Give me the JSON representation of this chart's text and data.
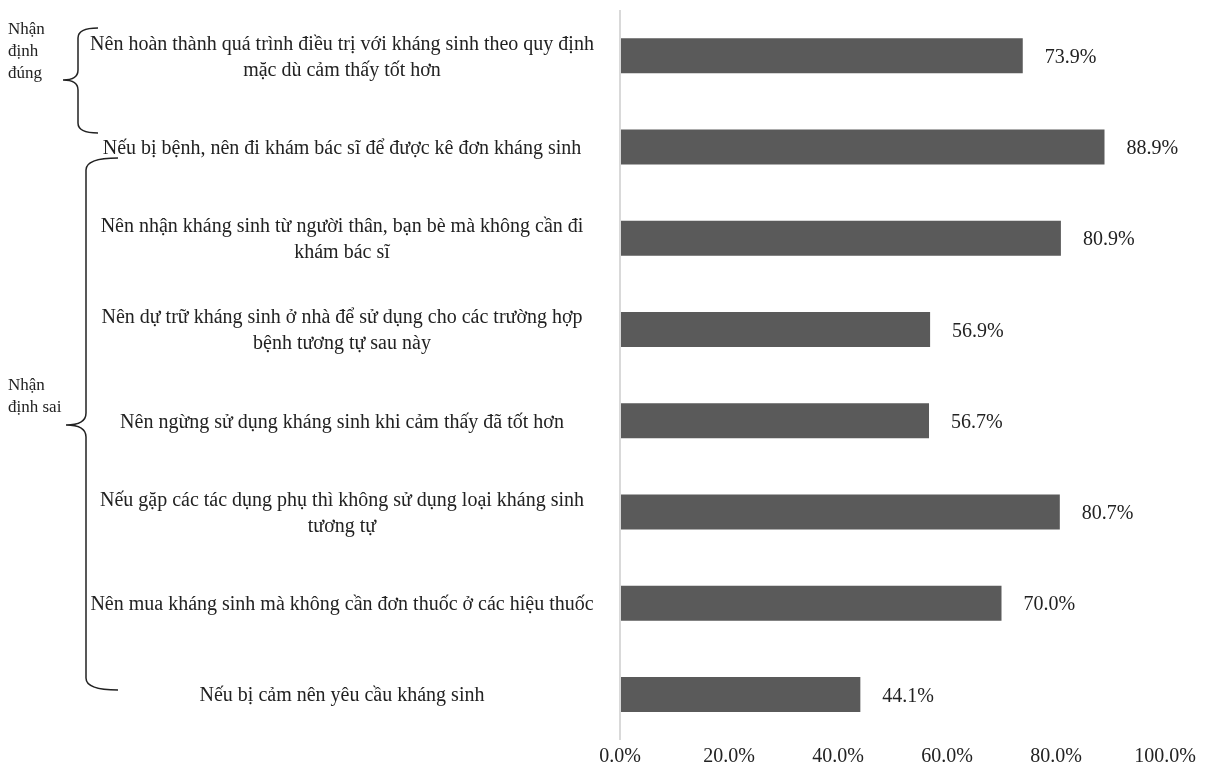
{
  "chart_data": {
    "type": "bar",
    "orientation": "horizontal",
    "categories": [
      "Nên hoàn thành quá trình điều trị với kháng sinh theo quy định mặc dù cảm thấy tốt hơn",
      "Nếu bị bệnh, nên đi khám bác sĩ để được kê đơn kháng sinh",
      "Nên nhận kháng sinh từ người thân, bạn bè mà không cần đi khám bác sĩ",
      "Nên dự trữ kháng sinh ở nhà để sử dụng cho các trường hợp bệnh tương tự sau này",
      "Nên ngừng sử dụng kháng sinh khi cảm thấy đã tốt hơn",
      "Nếu gặp các tác dụng phụ thì không sử dụng loại kháng sinh tương tự",
      "Nên mua kháng sinh mà không cần đơn thuốc ở các hiệu thuốc",
      "Nếu bị cảm nên yêu cầu kháng sinh"
    ],
    "values": [
      73.9,
      88.9,
      80.9,
      56.9,
      56.7,
      80.7,
      70.0,
      44.1
    ],
    "value_labels": [
      "73.9%",
      "88.9%",
      "80.9%",
      "56.9%",
      "56.7%",
      "80.7%",
      "70.0%",
      "44.1%"
    ],
    "color": "#5a5a5a",
    "xlim": [
      0,
      100
    ],
    "xticks": [
      {
        "value": 0,
        "label": "0.0%"
      },
      {
        "value": 20,
        "label": "20.0%"
      },
      {
        "value": 40,
        "label": "40.0%"
      },
      {
        "value": 60,
        "label": "60.0%"
      },
      {
        "value": 80,
        "label": "80.0%"
      },
      {
        "value": 100,
        "label": "100.0%"
      }
    ],
    "annotations": [
      "Nhận định đúng",
      "Nhận định sai"
    ]
  }
}
